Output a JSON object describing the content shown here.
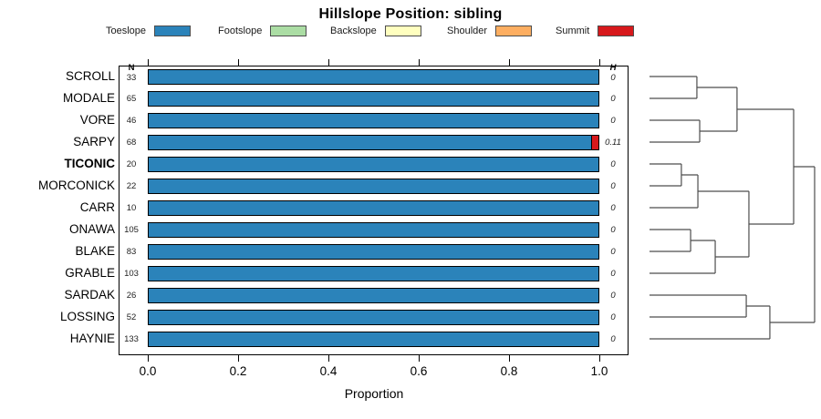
{
  "chart_data": {
    "type": "bar",
    "subtype": "horizontal-stacked-proportion",
    "title": "Hillslope Position: sibling",
    "xlabel": "Proportion",
    "xlim": [
      0.0,
      1.0
    ],
    "xticks": [
      0.0,
      0.2,
      0.4,
      0.6,
      0.8,
      1.0
    ],
    "xtick_labels": [
      "0.0",
      "0.2",
      "0.4",
      "0.6",
      "0.8",
      "1.0"
    ],
    "grid": false,
    "legend_position": "top",
    "classes": [
      "Toeslope",
      "Footslope",
      "Backslope",
      "Shoulder",
      "Summit"
    ],
    "colors": {
      "Toeslope": "#2B83BA",
      "Footslope": "#ABDDA4",
      "Backslope": "#FFFFBF",
      "Shoulder": "#FDAE61",
      "Summit": "#D7191C"
    },
    "n_column_header": "N",
    "h_column_header": "H",
    "rows": [
      {
        "name": "SCROLL",
        "bold": false,
        "n": "33",
        "h": "0",
        "proportions": [
          {
            "class": "Toeslope",
            "value": 1.0
          }
        ]
      },
      {
        "name": "MODALE",
        "bold": false,
        "n": "65",
        "h": "0",
        "proportions": [
          {
            "class": "Toeslope",
            "value": 1.0
          }
        ]
      },
      {
        "name": "VORE",
        "bold": false,
        "n": "46",
        "h": "0",
        "proportions": [
          {
            "class": "Toeslope",
            "value": 1.0
          }
        ]
      },
      {
        "name": "SARPY",
        "bold": false,
        "n": "68",
        "h": "0.11",
        "proportions": [
          {
            "class": "Toeslope",
            "value": 0.985
          },
          {
            "class": "Summit",
            "value": 0.015
          }
        ]
      },
      {
        "name": "TICONIC",
        "bold": true,
        "n": "20",
        "h": "0",
        "proportions": [
          {
            "class": "Toeslope",
            "value": 1.0
          }
        ]
      },
      {
        "name": "MORCONICK",
        "bold": false,
        "n": "22",
        "h": "0",
        "proportions": [
          {
            "class": "Toeslope",
            "value": 1.0
          }
        ]
      },
      {
        "name": "CARR",
        "bold": false,
        "n": "10",
        "h": "0",
        "proportions": [
          {
            "class": "Toeslope",
            "value": 1.0
          }
        ]
      },
      {
        "name": "ONAWA",
        "bold": false,
        "n": "105",
        "h": "0",
        "proportions": [
          {
            "class": "Toeslope",
            "value": 1.0
          }
        ]
      },
      {
        "name": "BLAKE",
        "bold": false,
        "n": "83",
        "h": "0",
        "proportions": [
          {
            "class": "Toeslope",
            "value": 1.0
          }
        ]
      },
      {
        "name": "GRABLE",
        "bold": false,
        "n": "103",
        "h": "0",
        "proportions": [
          {
            "class": "Toeslope",
            "value": 1.0
          }
        ]
      },
      {
        "name": "SARDAK",
        "bold": false,
        "n": "26",
        "h": "0",
        "proportions": [
          {
            "class": "Toeslope",
            "value": 1.0
          }
        ]
      },
      {
        "name": "LOSSING",
        "bold": false,
        "n": "52",
        "h": "0",
        "proportions": [
          {
            "class": "Toeslope",
            "value": 1.0
          }
        ]
      },
      {
        "name": "HAYNIE",
        "bold": false,
        "n": "133",
        "h": "0",
        "proportions": [
          {
            "class": "Toeslope",
            "value": 1.0
          }
        ]
      }
    ],
    "dendrogram": {
      "orientation": "right",
      "merges": [
        {
          "a": "SCROLL",
          "b": "MODALE",
          "h": 0.287
        },
        {
          "a": "VORE",
          "b": "SARPY",
          "h": 0.304
        },
        {
          "a": "#0",
          "b": "#1",
          "h": 0.53
        },
        {
          "a": "TICONIC",
          "b": "MORCONICK",
          "h": 0.193
        },
        {
          "a": "#3",
          "b": "CARR",
          "h": 0.293
        },
        {
          "a": "ONAWA",
          "b": "BLAKE",
          "h": 0.249
        },
        {
          "a": "#5",
          "b": "GRABLE",
          "h": 0.398
        },
        {
          "a": "#4",
          "b": "#6",
          "h": 0.602
        },
        {
          "a": "#2",
          "b": "#7",
          "h": 0.873
        },
        {
          "a": "SARDAK",
          "b": "LOSSING",
          "h": 0.586
        },
        {
          "a": "#9",
          "b": "HAYNIE",
          "h": 0.729
        },
        {
          "a": "#8",
          "b": "#10",
          "h": 1.0
        }
      ]
    }
  }
}
